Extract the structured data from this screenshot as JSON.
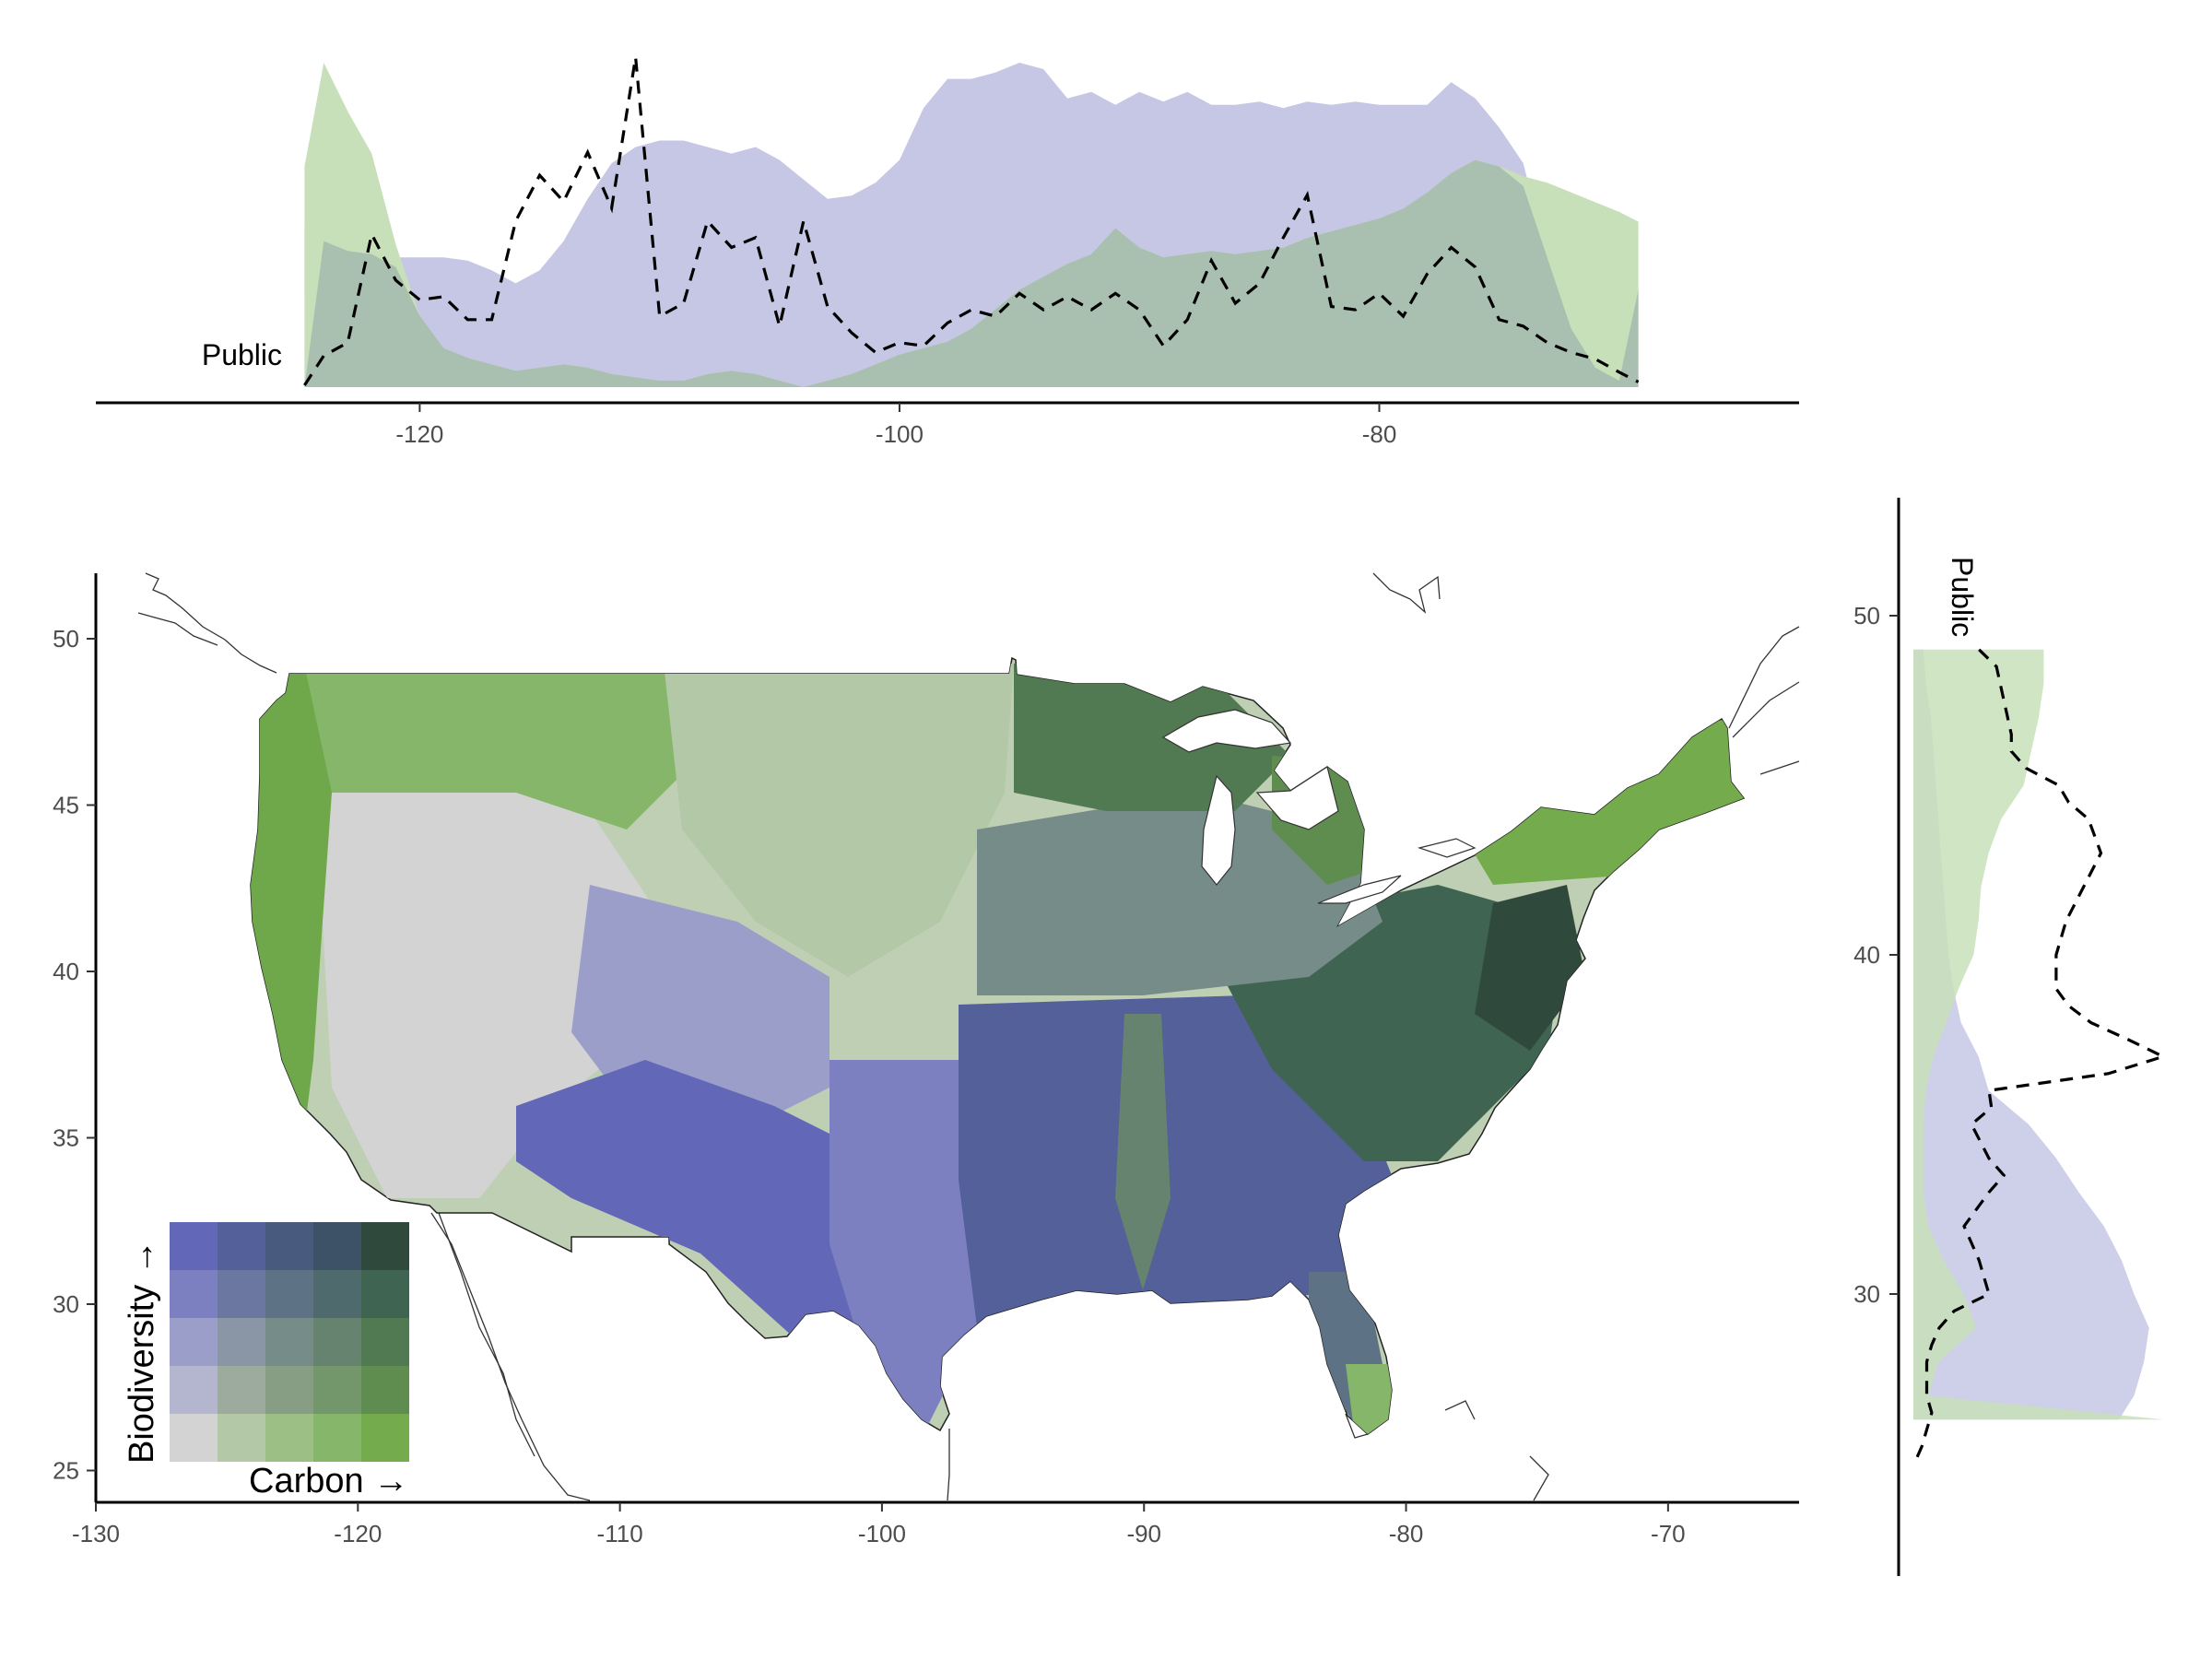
{
  "colors": {
    "biodiversity": "#6367b8",
    "carbon": "#73ab4d",
    "low": "#d3d3d3",
    "both": "#2f4a3c",
    "public_line": "#000000",
    "area_biodiversity": "#c5c7e4",
    "area_carbon": "#c8e0ba",
    "area_overlap": "#a9c0b0"
  },
  "public_label": "Public",
  "top_panel": {
    "x_ticks": [
      "-120",
      "-100",
      "-80"
    ]
  },
  "right_panel": {
    "y_ticks": [
      "50",
      "40",
      "30"
    ]
  },
  "main_map": {
    "x_ticks": [
      "-130",
      "-120",
      "-110",
      "-100",
      "-90",
      "-80",
      "-70"
    ],
    "y_ticks": [
      "50",
      "45",
      "40",
      "35",
      "30",
      "25"
    ]
  },
  "legend": {
    "x_label": "Carbon →",
    "y_label": "Biodiversity →",
    "grid": [
      [
        "#d3d3d3",
        "#b3c8a6",
        "#9bbf85",
        "#85b66a",
        "#73ab4d"
      ],
      [
        "#b4b6cf",
        "#9dab9e",
        "#889e84",
        "#74966b",
        "#5f8c4f"
      ],
      [
        "#9b9ec8",
        "#8a95a6",
        "#768c89",
        "#65836e",
        "#517a52"
      ],
      [
        "#7c80c0",
        "#6b77a1",
        "#5d7285",
        "#4f6a6c",
        "#3f6451"
      ],
      [
        "#6367b8",
        "#54609a",
        "#485a7e",
        "#3d5266",
        "#2f4a3c"
      ]
    ]
  },
  "chart_data": [
    {
      "type": "area",
      "panel": "top_marginal",
      "x_range": [
        -133.5,
        -62.5
      ],
      "series": [
        {
          "color_key": "area_biodiversity",
          "x": [
            -124.8,
            -124,
            -123,
            -122,
            -121,
            -120,
            -119,
            -118,
            -117,
            -116,
            -115,
            -114,
            -113,
            -112,
            -111,
            -110,
            -109,
            -108,
            -107,
            -106,
            -105,
            -104,
            -103,
            -102,
            -101,
            -100,
            -99,
            -98,
            -97,
            -96,
            -95,
            -94,
            -93,
            -92,
            -91,
            -90,
            -89,
            -88,
            -87,
            -86,
            -85,
            -84,
            -83,
            -82,
            -81,
            -80,
            -79,
            -78,
            -77,
            -76,
            -75,
            -74,
            -73,
            -72,
            -71,
            -70,
            -69.2
          ],
          "values": [
            0.49,
            0.45,
            0.44,
            0.42,
            0.4,
            0.4,
            0.4,
            0.39,
            0.36,
            0.32,
            0.36,
            0.45,
            0.58,
            0.69,
            0.74,
            0.76,
            0.76,
            0.74,
            0.72,
            0.74,
            0.7,
            0.64,
            0.58,
            0.59,
            0.63,
            0.7,
            0.86,
            0.95,
            0.95,
            0.97,
            1.0,
            0.98,
            0.89,
            0.91,
            0.87,
            0.91,
            0.88,
            0.91,
            0.87,
            0.87,
            0.88,
            0.86,
            0.88,
            0.87,
            0.88,
            0.87,
            0.87,
            0.87,
            0.94,
            0.89,
            0.8,
            0.69,
            0.4,
            0.18,
            0.06,
            0.02,
            0.0
          ]
        },
        {
          "color_key": "area_carbon",
          "x": [
            -124.8,
            -124,
            -123,
            -122,
            -121,
            -120,
            -119,
            -118,
            -117,
            -116,
            -115,
            -114,
            -113,
            -112,
            -111,
            -110,
            -109,
            -108,
            -107,
            -106,
            -105,
            -104,
            -103,
            -102,
            -101,
            -100,
            -99,
            -98,
            -97,
            -96,
            -95,
            -94,
            -93,
            -92,
            -91,
            -90,
            -89,
            -88,
            -87,
            -86,
            -85,
            -84,
            -83,
            -82,
            -81,
            -80,
            -79,
            -78,
            -77,
            -76,
            -75,
            -74,
            -73,
            -72,
            -71,
            -70,
            -69.2
          ],
          "values": [
            0.68,
            1.0,
            0.85,
            0.72,
            0.44,
            0.22,
            0.12,
            0.09,
            0.07,
            0.05,
            0.06,
            0.07,
            0.06,
            0.04,
            0.03,
            0.02,
            0.02,
            0.04,
            0.05,
            0.04,
            0.02,
            0.0,
            0.02,
            0.04,
            0.07,
            0.1,
            0.12,
            0.14,
            0.18,
            0.24,
            0.3,
            0.34,
            0.38,
            0.41,
            0.45,
            0.43,
            0.4,
            0.41,
            0.42,
            0.41,
            0.42,
            0.43,
            0.46,
            0.48,
            0.5,
            0.52,
            0.55,
            0.6,
            0.66,
            0.7,
            0.68,
            0.65,
            0.63,
            0.6,
            0.57,
            0.54,
            0.51
          ]
        },
        {
          "color_key": "area_overlap",
          "x": [
            -124.8,
            -124,
            -123,
            -122,
            -121,
            -120,
            -119,
            -118,
            -117,
            -116,
            -115,
            -114,
            -113,
            -112,
            -111,
            -110,
            -109,
            -108,
            -107,
            -106,
            -105,
            -104,
            -103,
            -102,
            -101,
            -100,
            -99,
            -98,
            -97,
            -96,
            -95,
            -94,
            -93,
            -92,
            -91,
            -90,
            -89,
            -88,
            -87,
            -86,
            -85,
            -84,
            -83,
            -82,
            -81,
            -80,
            -79,
            -78,
            -77,
            -76,
            -75,
            -74,
            -73,
            -72,
            -71,
            -70,
            -69.2
          ],
          "values": [
            0.0,
            0.45,
            0.42,
            0.41,
            0.37,
            0.22,
            0.12,
            0.09,
            0.07,
            0.05,
            0.06,
            0.07,
            0.06,
            0.04,
            0.03,
            0.02,
            0.02,
            0.04,
            0.05,
            0.04,
            0.02,
            0.0,
            0.02,
            0.04,
            0.07,
            0.1,
            0.12,
            0.14,
            0.18,
            0.24,
            0.3,
            0.34,
            0.38,
            0.41,
            0.49,
            0.43,
            0.4,
            0.41,
            0.42,
            0.41,
            0.42,
            0.43,
            0.46,
            0.48,
            0.5,
            0.52,
            0.55,
            0.6,
            0.66,
            0.7,
            0.68,
            0.62,
            0.4,
            0.18,
            0.06,
            0.02,
            0.3
          ]
        }
      ]
    },
    {
      "type": "line",
      "panel": "top_marginal",
      "series": [
        {
          "name": "Public",
          "style": "dashed",
          "x": [
            -124.8,
            -124,
            -123,
            -122,
            -121,
            -120,
            -119,
            -118,
            -117,
            -116,
            -115,
            -114,
            -113,
            -112,
            -111,
            -110,
            -109,
            -108,
            -107,
            -106,
            -105,
            -104,
            -103,
            -102,
            -101,
            -100,
            -99,
            -98,
            -97,
            -96,
            -95,
            -94,
            -93,
            -92,
            -91,
            -90,
            -89,
            -88,
            -87,
            -86,
            -85,
            -84,
            -83,
            -82,
            -81,
            -80,
            -79,
            -78,
            -77,
            -76,
            -75,
            -74,
            -73,
            -72,
            -71,
            -70,
            -69.2
          ],
          "values": [
            0.0,
            0.09,
            0.13,
            0.46,
            0.32,
            0.26,
            0.27,
            0.2,
            0.2,
            0.5,
            0.64,
            0.56,
            0.71,
            0.54,
            1.0,
            0.21,
            0.25,
            0.5,
            0.42,
            0.45,
            0.18,
            0.5,
            0.24,
            0.16,
            0.1,
            0.13,
            0.12,
            0.19,
            0.23,
            0.21,
            0.28,
            0.23,
            0.27,
            0.23,
            0.28,
            0.23,
            0.12,
            0.2,
            0.38,
            0.25,
            0.31,
            0.45,
            0.58,
            0.24,
            0.23,
            0.28,
            0.21,
            0.34,
            0.42,
            0.36,
            0.2,
            0.18,
            0.13,
            0.1,
            0.08,
            0.04,
            0.01
          ]
        }
      ]
    },
    {
      "type": "area",
      "panel": "right_marginal",
      "y_range": [
        22.5,
        54.5
      ],
      "series": [
        {
          "color_key": "area_biodiversity",
          "y": [
            49,
            48,
            47,
            46,
            45,
            44,
            43,
            42,
            41,
            40,
            39,
            38,
            37,
            36,
            35,
            34,
            33,
            32,
            31,
            30,
            29,
            28,
            27,
            26.3
          ],
          "values": [
            0.04,
            0.05,
            0.07,
            0.08,
            0.09,
            0.1,
            0.11,
            0.12,
            0.13,
            0.14,
            0.16,
            0.19,
            0.26,
            0.3,
            0.46,
            0.57,
            0.66,
            0.76,
            0.83,
            0.88,
            0.94,
            0.92,
            0.88,
            0.82
          ]
        },
        {
          "color_key": "area_carbon",
          "y": [
            49,
            48,
            47,
            46,
            45,
            44,
            43,
            42,
            41,
            40,
            39,
            38,
            37,
            36,
            35,
            34,
            33,
            32,
            31,
            30,
            29,
            28,
            27,
            26.3
          ],
          "values": [
            0.52,
            0.52,
            0.5,
            0.47,
            0.44,
            0.35,
            0.3,
            0.27,
            0.26,
            0.24,
            0.18,
            0.13,
            0.08,
            0.05,
            0.04,
            0.04,
            0.04,
            0.06,
            0.12,
            0.2,
            0.25,
            0.1,
            0.06,
            1.0
          ]
        }
      ]
    },
    {
      "type": "line",
      "panel": "right_marginal",
      "series": [
        {
          "name": "Public",
          "style": "dashed",
          "y": [
            49,
            48.5,
            47.5,
            46.5,
            46,
            45.5,
            45,
            44.5,
            44,
            43,
            42,
            41,
            40,
            39,
            38.5,
            38,
            37.5,
            37,
            36.5,
            36,
            35.5,
            35,
            34,
            33.5,
            33,
            32,
            31,
            30,
            29.5,
            29,
            28.5,
            28,
            27,
            26.5,
            26,
            25.5,
            25
          ],
          "values": [
            0.26,
            0.33,
            0.36,
            0.39,
            0.39,
            0.45,
            0.58,
            0.62,
            0.7,
            0.75,
            0.68,
            0.61,
            0.57,
            0.57,
            0.62,
            0.71,
            0.86,
            1.0,
            0.78,
            0.3,
            0.31,
            0.23,
            0.3,
            0.36,
            0.3,
            0.2,
            0.26,
            0.3,
            0.16,
            0.1,
            0.07,
            0.05,
            0.05,
            0.07,
            0.05,
            0.03,
            0.0
          ]
        }
      ]
    }
  ]
}
